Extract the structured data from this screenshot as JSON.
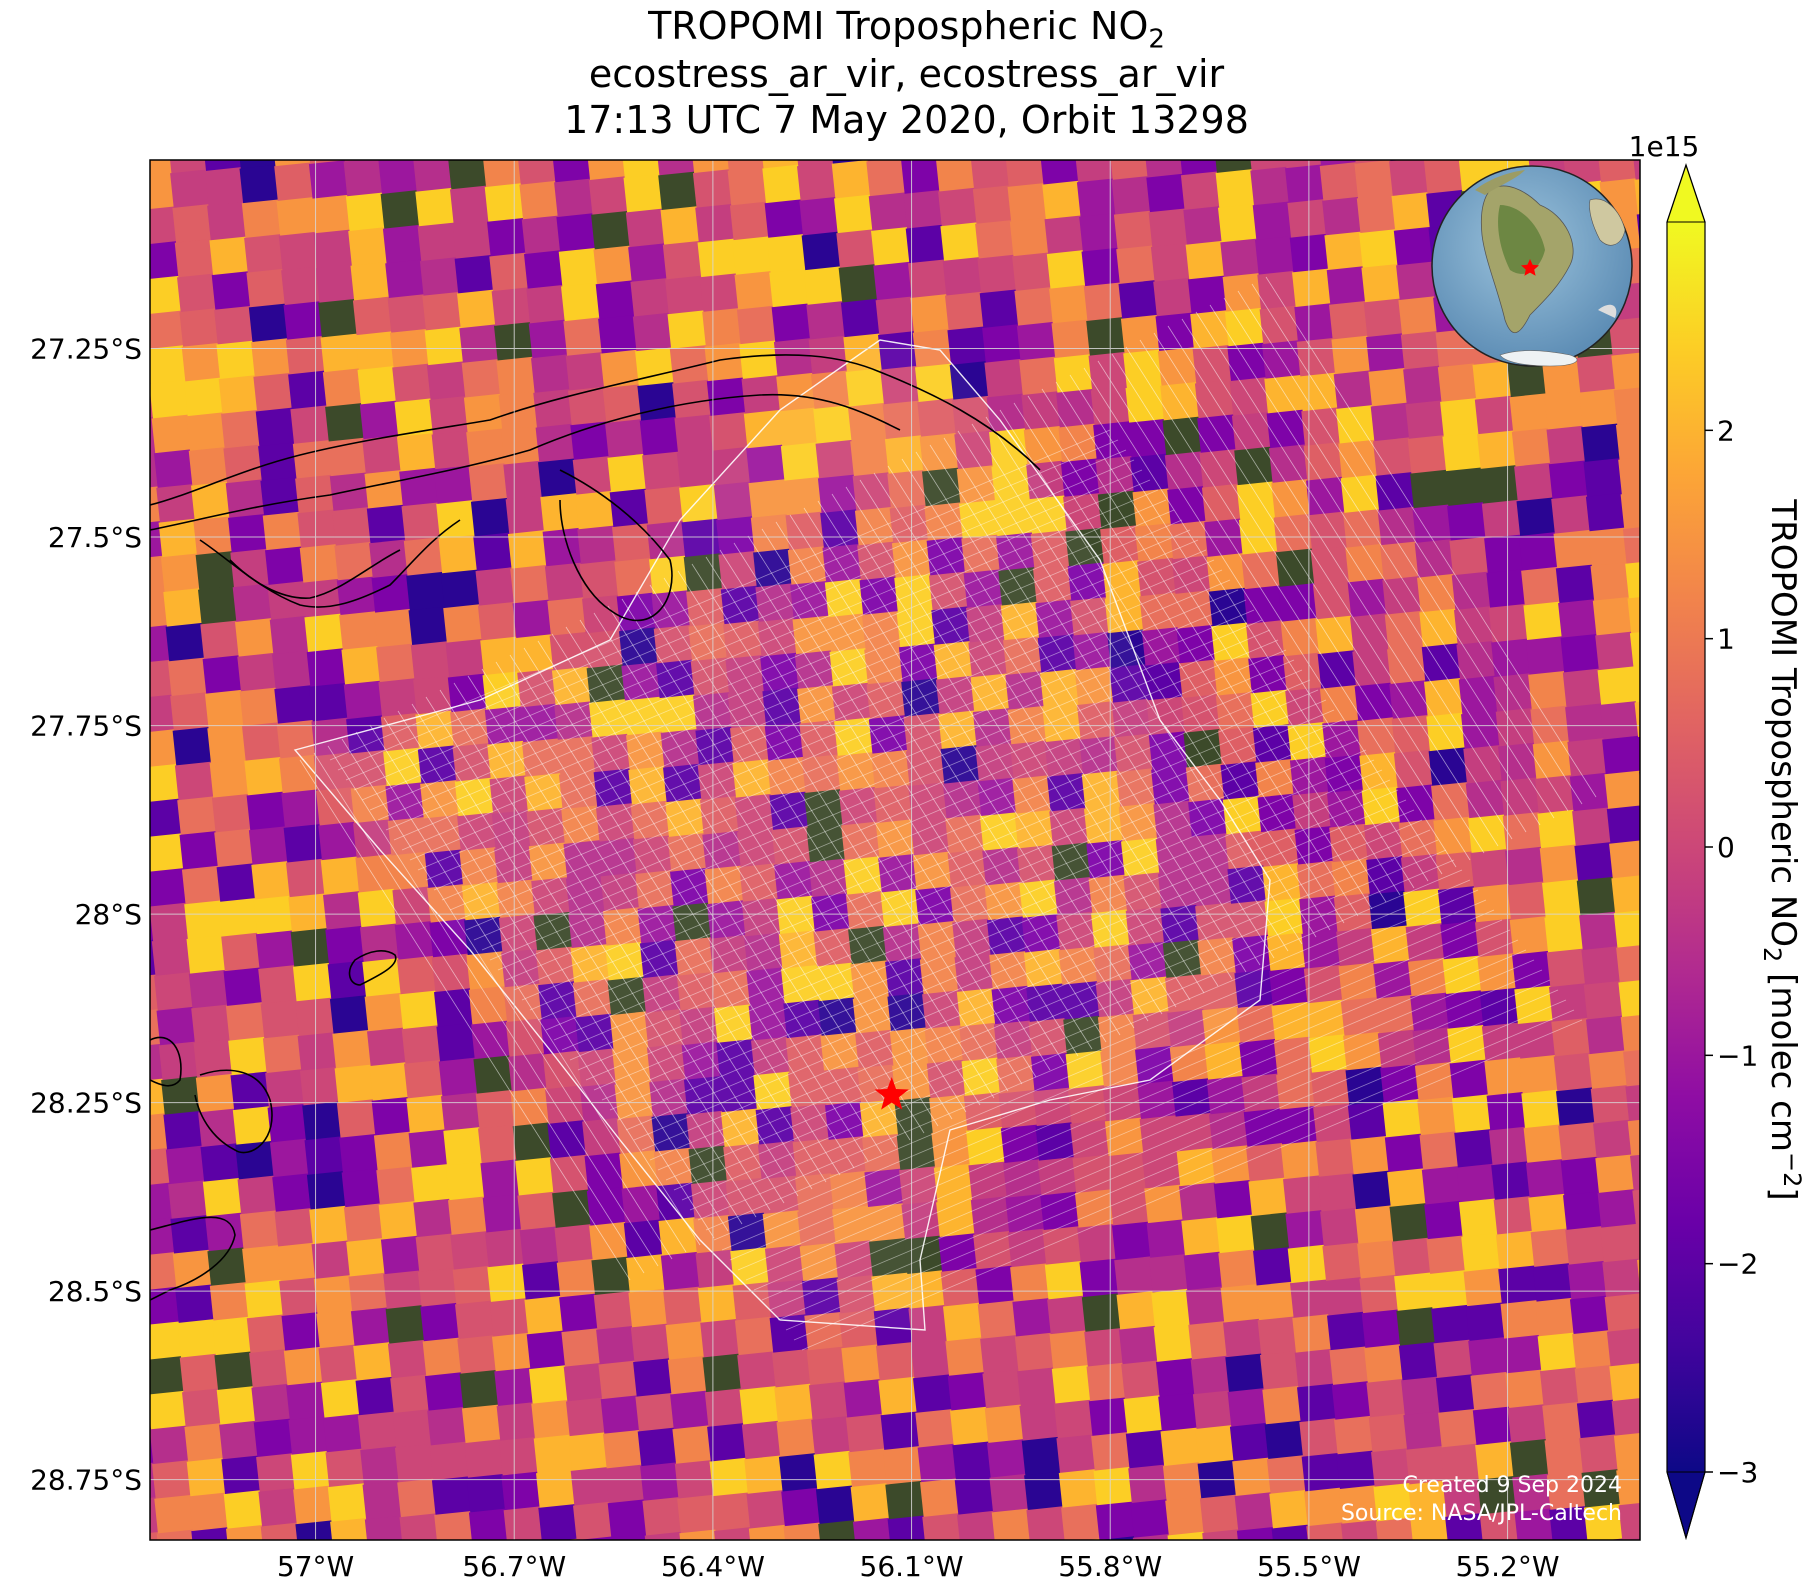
{
  "title": {
    "line1": "TROPOMI Tropospheric NO",
    "line1_sub": "2",
    "line2": "ecostress_ar_vir, ecostress_ar_vir",
    "line3": "17:13 UTC 7 May 2020, Orbit 13298"
  },
  "map": {
    "lon_range": [
      -57.25,
      -55.0
    ],
    "lat_range": [
      -28.83,
      -27.0
    ],
    "lon_ticks": [
      {
        "value": -57.0,
        "label": "57°W"
      },
      {
        "value": -56.7,
        "label": "56.7°W"
      },
      {
        "value": -56.4,
        "label": "56.4°W"
      },
      {
        "value": -56.1,
        "label": "56.1°W"
      },
      {
        "value": -55.8,
        "label": "55.8°W"
      },
      {
        "value": -55.5,
        "label": "55.5°W"
      },
      {
        "value": -55.2,
        "label": "55.2°W"
      }
    ],
    "lat_ticks": [
      {
        "value": -27.25,
        "label": "27.25°S"
      },
      {
        "value": -27.5,
        "label": "27.5°S"
      },
      {
        "value": -27.75,
        "label": "27.75°S"
      },
      {
        "value": -28.0,
        "label": "28°S"
      },
      {
        "value": -28.25,
        "label": "28.25°S"
      },
      {
        "value": -28.5,
        "label": "28.5°S"
      },
      {
        "value": -28.75,
        "label": "28.75°S"
      }
    ],
    "gridlines": true,
    "marker": {
      "lon": -56.13,
      "lat": -28.24,
      "symbol": "red-star"
    },
    "inset": "globe-south-america",
    "credits": {
      "created": "Created 9 Sep 2024",
      "source": "Source: NASA/JPL-Caltech"
    }
  },
  "colorbar": {
    "label": "TROPOMI Tropospheric NO",
    "label_sub": "2",
    "label_units": " [molec cm",
    "label_units_sup": "−2",
    "label_end": "]",
    "multiplier": "1e15",
    "colormap": "plasma",
    "range": [
      -3,
      3
    ],
    "extend": "both",
    "ticks": [
      {
        "value": 2,
        "label": "2"
      },
      {
        "value": 1,
        "label": "1"
      },
      {
        "value": 0,
        "label": "0"
      },
      {
        "value": -1,
        "label": "−1"
      },
      {
        "value": -2,
        "label": "−2"
      },
      {
        "value": -3,
        "label": "−3"
      }
    ]
  }
}
